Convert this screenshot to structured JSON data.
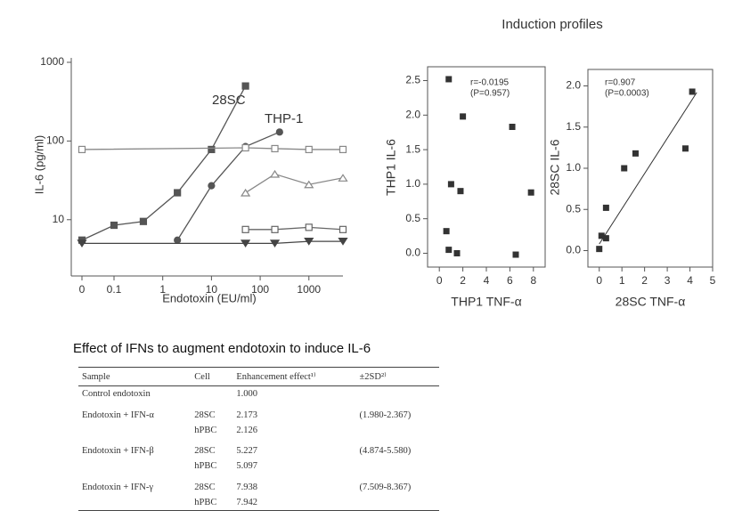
{
  "header": "Induction profiles",
  "chart_data": [
    {
      "type": "line",
      "xlabel": "Endotoxin (EU/ml)",
      "ylabel": "IL-6 (pg/ml)",
      "xscale": "log",
      "yscale": "log",
      "xlim": [
        0,
        5000
      ],
      "xticks": [
        0,
        0.1,
        1,
        10,
        100,
        1000
      ],
      "ylim": [
        2.5,
        1000
      ],
      "yticks": [
        10,
        100,
        1000
      ],
      "annotations": [
        "28SC",
        "THP-1"
      ],
      "series": [
        {
          "color": "#555555",
          "marker": "square-filled",
          "x": [
            0,
            0.1,
            0.4,
            2,
            10,
            50
          ],
          "values": [
            5.5,
            8.5,
            9.5,
            22,
            78,
            500
          ]
        },
        {
          "color": "#555555",
          "marker": "circle-filled",
          "x": [
            2,
            10,
            50,
            250
          ],
          "values": [
            5.5,
            27,
            85,
            130
          ]
        },
        {
          "color": "#888888",
          "marker": "square-open",
          "x": [
            0,
            50,
            200,
            1000,
            5000
          ],
          "values": [
            78,
            82,
            80,
            78,
            78
          ]
        },
        {
          "color": "#888888",
          "marker": "triangle-open",
          "x": [
            50,
            200,
            1000,
            5000
          ],
          "values": [
            22,
            38,
            28,
            34
          ]
        },
        {
          "color": "#666666",
          "marker": "square-open",
          "x": [
            50,
            200,
            1000,
            5000
          ],
          "values": [
            7.5,
            7.5,
            8,
            7.5
          ]
        },
        {
          "color": "#444444",
          "marker": "triangle-down-filled",
          "x": [
            0,
            50,
            200,
            1000,
            5000
          ],
          "values": [
            5,
            5,
            5,
            5.3,
            5.3
          ]
        }
      ]
    },
    {
      "type": "scatter",
      "xlabel": "THP1 TNF-α",
      "ylabel": "THP1 IL-6",
      "xlim": [
        -1,
        9
      ],
      "xticks": [
        0,
        2,
        4,
        6,
        8
      ],
      "ylim": [
        -0.2,
        2.7
      ],
      "yticks": [
        {
          "value": 0,
          "label": "0.0"
        },
        0.5,
        {
          "value": 1,
          "label": "1.0"
        },
        1.5,
        {
          "value": 2,
          "label": "2.0"
        },
        2.5
      ],
      "annotations": [
        "r=-0.0195",
        "(P=0.957)"
      ],
      "color": "#333333",
      "x": [
        0.8,
        0.6,
        0.8,
        1.0,
        1.5,
        1.8,
        2.0,
        6.2,
        6.5,
        7.8
      ],
      "values": [
        2.52,
        0.32,
        0.05,
        1.0,
        0.0,
        0.9,
        1.98,
        1.83,
        -0.02,
        0.88
      ]
    },
    {
      "type": "scatter",
      "xlabel": "28SC TNF-α",
      "ylabel": "28SC IL-6",
      "xlim": [
        -0.5,
        5
      ],
      "xticks": [
        0,
        1,
        2,
        3,
        4,
        5
      ],
      "ylim": [
        -0.2,
        2.2
      ],
      "yticks": [
        {
          "value": 0,
          "label": "0.0"
        },
        0.5,
        {
          "value": 1,
          "label": "1.0"
        },
        1.5,
        {
          "value": 2,
          "label": "2.0"
        }
      ],
      "annotations": [
        "r=0.907",
        "(P=0.0003)"
      ],
      "color": "#333333",
      "x": [
        0,
        0.1,
        0.3,
        0.3,
        1.1,
        1.6,
        3.8,
        4.1
      ],
      "values": [
        0.02,
        0.18,
        0.52,
        0.15,
        1.0,
        1.18,
        1.24,
        1.93
      ],
      "fit": {
        "x": [
          0,
          4.3
        ],
        "values": [
          0.08,
          1.92
        ]
      }
    }
  ],
  "table": {
    "title": "Effect of IFNs to augment endotoxin to induce IL-6",
    "columns": [
      "Sample",
      "Cell",
      "Enhancement effect¹⁾",
      "±2SD²⁾"
    ],
    "rows": [
      [
        "Control endotoxin",
        null,
        "1.000",
        null
      ],
      [
        "Endotoxin + IFN-α",
        "28SC",
        "2.173",
        "(1.980-2.367)"
      ],
      [
        null,
        "hPBC",
        "2.126",
        null
      ],
      [
        "Endotoxin + IFN-β",
        "28SC",
        "5.227",
        "(4.874-5.580)"
      ],
      [
        null,
        "hPBC",
        "5.097",
        null
      ],
      [
        "Endotoxin + IFN-γ",
        "28SC",
        "7.938",
        "(7.509-8.367)"
      ],
      [
        null,
        "hPBC",
        "7.942",
        null
      ]
    ]
  }
}
